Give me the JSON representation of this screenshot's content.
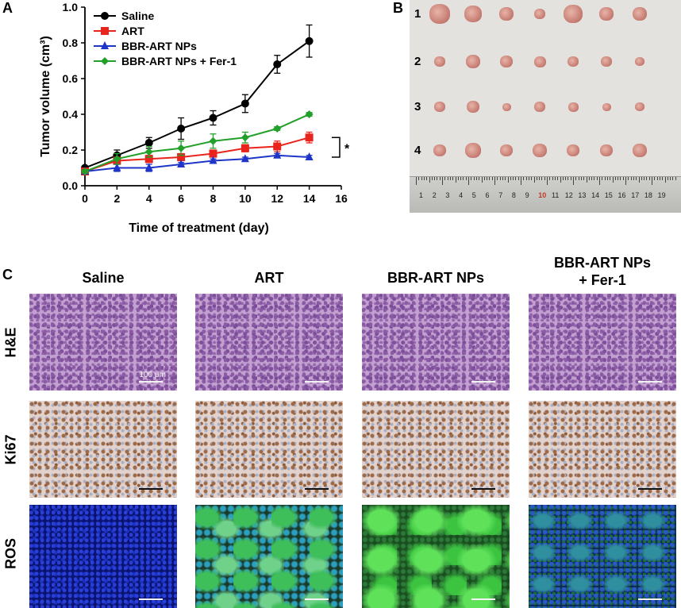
{
  "panel_labels": {
    "a": "A",
    "b": "B",
    "c": "C"
  },
  "chart_data": {
    "type": "line",
    "xlabel": "Time of treatment (day)",
    "ylabel": "Tumor volume (cm³)",
    "xlim": [
      0,
      16
    ],
    "ylim": [
      0,
      1.0
    ],
    "x_ticks": [
      "0",
      "2",
      "4",
      "6",
      "8",
      "10",
      "12",
      "14",
      "16"
    ],
    "y_ticks": [
      "0.0",
      "0.2",
      "0.4",
      "0.6",
      "0.8",
      "1.0"
    ],
    "x": [
      0,
      2,
      4,
      6,
      8,
      10,
      12,
      14
    ],
    "legend_position": "top-left",
    "series": [
      {
        "name": "Saline",
        "color": "#000000",
        "marker": "circle",
        "values": [
          0.1,
          0.17,
          0.24,
          0.32,
          0.38,
          0.46,
          0.68,
          0.81
        ],
        "errors": [
          0.01,
          0.03,
          0.03,
          0.06,
          0.04,
          0.05,
          0.05,
          0.09
        ]
      },
      {
        "name": "ART",
        "color": "#e8241c",
        "marker": "square",
        "values": [
          0.08,
          0.14,
          0.15,
          0.16,
          0.18,
          0.21,
          0.22,
          0.27
        ],
        "errors": [
          0.01,
          0.02,
          0.02,
          0.02,
          0.02,
          0.02,
          0.03,
          0.03
        ]
      },
      {
        "name": "BBR-ART NPs",
        "color": "#1f35c8",
        "marker": "triangle",
        "values": [
          0.08,
          0.1,
          0.1,
          0.12,
          0.14,
          0.15,
          0.17,
          0.16
        ],
        "errors": [
          0.01,
          0.02,
          0.02,
          0.01,
          0.01,
          0.01,
          0.01,
          0.01
        ]
      },
      {
        "name": "BBR-ART NPs + Fer-1",
        "color": "#22a02a",
        "marker": "diamond",
        "values": [
          0.08,
          0.15,
          0.19,
          0.21,
          0.25,
          0.27,
          0.32,
          0.4
        ],
        "errors": [
          0.01,
          0.03,
          0.03,
          0.04,
          0.04,
          0.03,
          0.01,
          0.01
        ]
      }
    ],
    "annotations": [
      {
        "text": "*"
      }
    ]
  },
  "panel_b": {
    "row_numbers": [
      "1",
      "2",
      "3",
      "4"
    ],
    "ruler_numbers": [
      "1",
      "2",
      "3",
      "4",
      "5",
      "6",
      "7",
      "8",
      "9",
      "10",
      "11",
      "12",
      "13",
      "14",
      "15",
      "16",
      "17",
      "18",
      "19"
    ],
    "ruler_highlight": "10"
  },
  "panel_c": {
    "column_titles": [
      "Saline",
      "ART",
      "BBR-ART NPs",
      "BBR-ART NPs + Fer-1"
    ],
    "row_labels": [
      "H&E",
      "Ki67",
      "ROS"
    ],
    "scale_text": "100 μm"
  }
}
